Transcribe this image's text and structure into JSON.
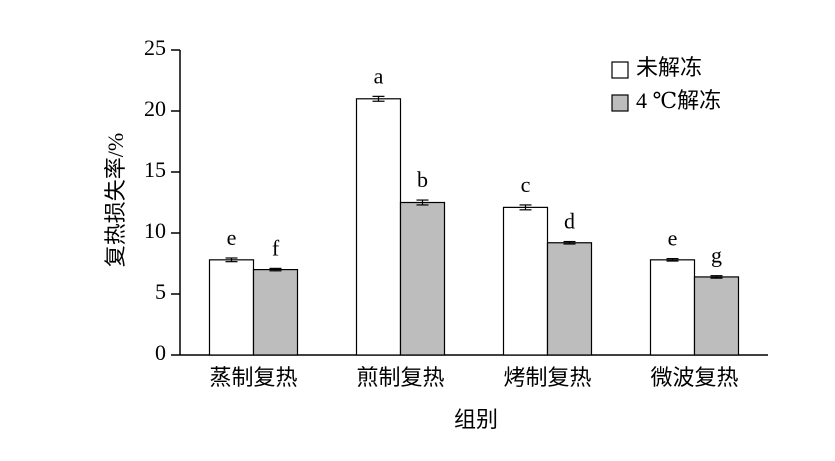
{
  "chart_data": {
    "type": "bar",
    "xlabel": "组别",
    "ylabel": "复热损失率/%",
    "categories": [
      "蒸制复热",
      "煎制复热",
      "烤制复热",
      "微波复热"
    ],
    "series": [
      {
        "name": "未解冻",
        "color": "#ffffff",
        "values": [
          7.8,
          21.0,
          12.1,
          7.8
        ],
        "errors": [
          0.15,
          0.2,
          0.2,
          0.1
        ],
        "labels": [
          "e",
          "a",
          "c",
          "e"
        ]
      },
      {
        "name": "4 ℃解冻",
        "color": "#bdbdbd",
        "values": [
          7.0,
          12.5,
          9.2,
          6.4
        ],
        "errors": [
          0.1,
          0.2,
          0.1,
          0.1
        ],
        "labels": [
          "f",
          "b",
          "d",
          "g"
        ]
      }
    ],
    "ylim": [
      0,
      25
    ],
    "yticks": [
      0,
      5,
      10,
      15,
      20,
      25
    ],
    "legend": "upper right"
  }
}
